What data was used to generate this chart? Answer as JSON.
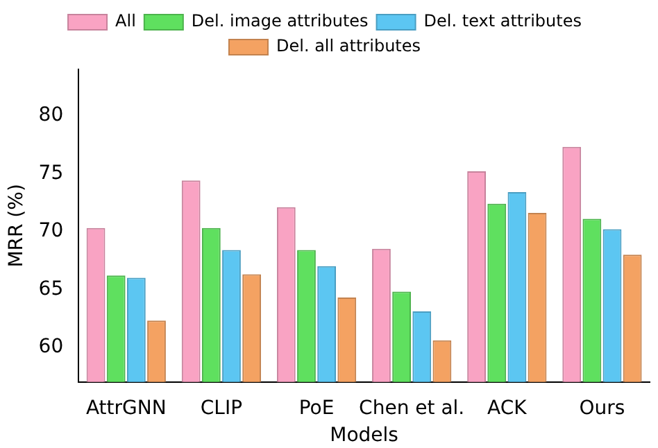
{
  "chart_data": {
    "type": "bar",
    "xlabel": "Models",
    "ylabel": "MRR (%)",
    "categories": [
      "AttrGNN",
      "CLIP",
      "PoE",
      "Chen et al.",
      "ACK",
      "Ours"
    ],
    "series": [
      {
        "name": "All",
        "color": "#f9a3c3",
        "values": [
          70.3,
          74.4,
          72.1,
          68.5,
          75.2,
          77.3
        ]
      },
      {
        "name": "Del. image attributes",
        "color": "#5fe05f",
        "values": [
          66.2,
          70.3,
          68.4,
          64.8,
          72.4,
          71.1
        ]
      },
      {
        "name": "Del. text attributes",
        "color": "#5cc6f2",
        "values": [
          66.0,
          68.4,
          67.0,
          63.1,
          73.4,
          70.2
        ]
      },
      {
        "name": "Del. all attributes",
        "color": "#f4a262",
        "values": [
          62.3,
          66.3,
          64.3,
          60.6,
          71.6,
          68.0
        ]
      }
    ],
    "ylim": [
      57,
      84
    ],
    "yticks": [
      60,
      65,
      70,
      75,
      80
    ],
    "grid": false,
    "legend": "top"
  }
}
